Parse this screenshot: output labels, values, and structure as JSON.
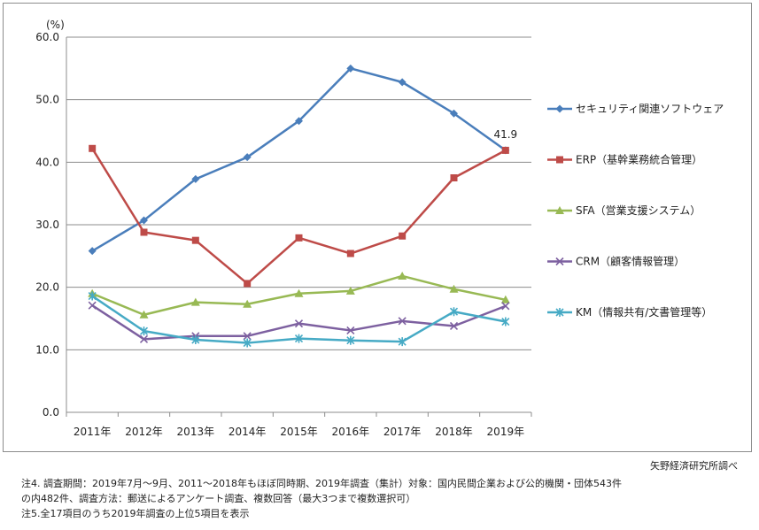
{
  "chart_data": {
    "type": "line",
    "unit_label": "(%)",
    "categories": [
      "2011年",
      "2012年",
      "2013年",
      "2014年",
      "2015年",
      "2016年",
      "2017年",
      "2018年",
      "2019年"
    ],
    "ylim": [
      0,
      60
    ],
    "yticks": [
      "0.0",
      "10.0",
      "20.0",
      "30.0",
      "40.0",
      "50.0",
      "60.0"
    ],
    "grid": true,
    "legend_position": "right",
    "series": [
      {
        "name": "セキュリティ関連ソフトウェア",
        "color": "#4a7ebb",
        "marker": "diamond",
        "values": [
          25.8,
          30.7,
          37.3,
          40.8,
          46.6,
          55.0,
          52.8,
          47.8,
          41.9
        ]
      },
      {
        "name": "ERP（基幹業務統合管理）",
        "color": "#be4b48",
        "marker": "square",
        "values": [
          42.2,
          28.8,
          27.5,
          20.6,
          27.9,
          25.4,
          28.2,
          37.5,
          41.9
        ]
      },
      {
        "name": "SFA（営業支援システム）",
        "color": "#98b954",
        "marker": "triangle",
        "values": [
          19.0,
          15.6,
          17.6,
          17.3,
          19.0,
          19.4,
          21.8,
          19.7,
          18.0
        ]
      },
      {
        "name": "CRM（顧客情報管理）",
        "color": "#7d60a0",
        "marker": "x",
        "values": [
          17.1,
          11.7,
          12.2,
          12.2,
          14.2,
          13.1,
          14.6,
          13.8,
          17.0
        ]
      },
      {
        "name": "KM（情報共有/文書管理等）",
        "color": "#46aac5",
        "marker": "star",
        "values": [
          18.6,
          13.0,
          11.6,
          11.1,
          11.8,
          11.5,
          11.3,
          16.1,
          14.5
        ]
      }
    ],
    "annotations": [
      {
        "text": "41.9",
        "series": 0,
        "point": 8
      }
    ]
  },
  "source": "矢野経済研究所調べ",
  "footnotes": [
    "注4.  調査期間：2019年7月～9月、2011～2018年もほぼ同時期、2019年調査（集計）対象：国内民間企業および公的機関・団体543件",
    "の内482件、調査方法：郵送によるアンケート調査、複数回答（最大3つまで複数選択可）",
    "注5.全17項目のうち2019年調査の上位5項目を表示"
  ]
}
